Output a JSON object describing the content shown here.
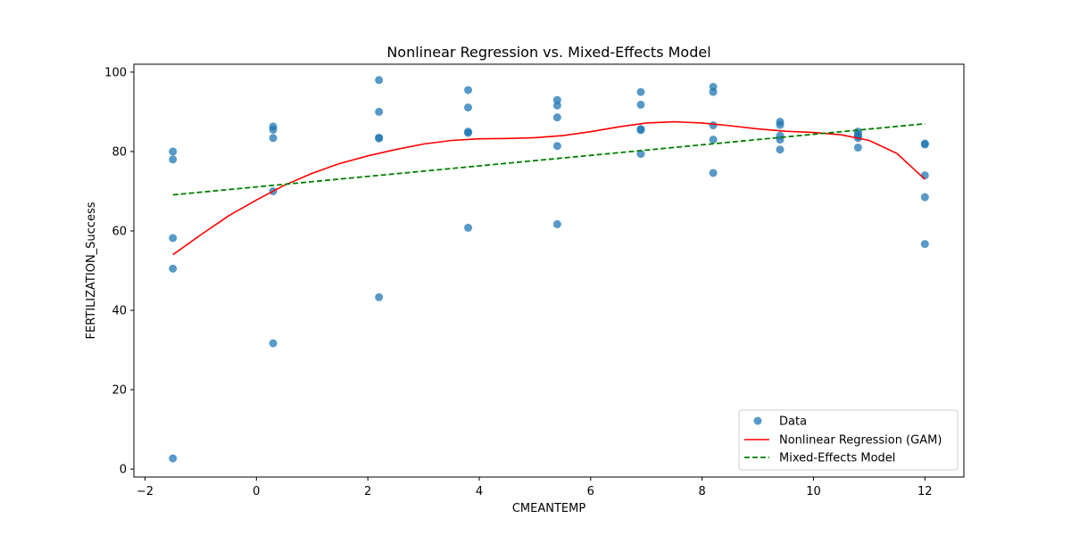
{
  "chart_data": {
    "type": "scatter",
    "title": "Nonlinear Regression vs. Mixed-Effects Model",
    "xlabel": "CMEANTEMP",
    "ylabel": "FERTILIZATION_Success",
    "xlim": [
      -2.2,
      12.7
    ],
    "ylim": [
      -2,
      102
    ],
    "xticks": [
      -2,
      0,
      2,
      4,
      6,
      8,
      10,
      12
    ],
    "yticks": [
      0,
      20,
      40,
      60,
      80,
      100
    ],
    "grid": false,
    "legend_position": "lower-right",
    "legend": [
      "Data",
      "Nonlinear Regression (GAM)",
      "Mixed-Effects Model"
    ],
    "colors": {
      "data": "#1f77b4",
      "gam": "#ff0000",
      "mixed": "#008000"
    },
    "series": [
      {
        "name": "Data",
        "kind": "scatter",
        "points": [
          [
            -1.5,
            80.0
          ],
          [
            -1.5,
            78.0
          ],
          [
            -1.5,
            58.2
          ],
          [
            -1.5,
            50.5
          ],
          [
            -1.5,
            2.7
          ],
          [
            0.3,
            86.3
          ],
          [
            0.3,
            85.5
          ],
          [
            0.3,
            83.4
          ],
          [
            0.3,
            70.0
          ],
          [
            0.3,
            31.7
          ],
          [
            2.2,
            98.0
          ],
          [
            2.2,
            90.0
          ],
          [
            2.2,
            83.5
          ],
          [
            2.2,
            83.3
          ],
          [
            2.2,
            43.3
          ],
          [
            3.8,
            95.5
          ],
          [
            3.8,
            91.1
          ],
          [
            3.8,
            85.0
          ],
          [
            3.8,
            84.7
          ],
          [
            3.8,
            60.8
          ],
          [
            5.4,
            93.0
          ],
          [
            5.4,
            91.6
          ],
          [
            5.4,
            88.6
          ],
          [
            5.4,
            81.4
          ],
          [
            5.4,
            61.7
          ],
          [
            6.9,
            95.0
          ],
          [
            6.9,
            91.8
          ],
          [
            6.9,
            85.7
          ],
          [
            6.9,
            85.4
          ],
          [
            6.9,
            79.4
          ],
          [
            8.2,
            96.3
          ],
          [
            8.2,
            95.0
          ],
          [
            8.2,
            86.6
          ],
          [
            8.2,
            83.0
          ],
          [
            8.2,
            74.6
          ],
          [
            9.4,
            87.5
          ],
          [
            9.4,
            86.7
          ],
          [
            9.4,
            84.0
          ],
          [
            9.4,
            83.0
          ],
          [
            9.4,
            80.5
          ],
          [
            10.8,
            85.0
          ],
          [
            10.8,
            84.3
          ],
          [
            10.8,
            83.9
          ],
          [
            10.8,
            83.4
          ],
          [
            10.8,
            81.0
          ],
          [
            12.0,
            82.0
          ],
          [
            12.0,
            81.8
          ],
          [
            12.0,
            74.0
          ],
          [
            12.0,
            68.5
          ],
          [
            12.0,
            56.7
          ]
        ]
      },
      {
        "name": "Nonlinear Regression (GAM)",
        "kind": "line",
        "points": [
          [
            -1.5,
            54.0
          ],
          [
            -1.0,
            59.0
          ],
          [
            -0.5,
            63.8
          ],
          [
            0.0,
            67.8
          ],
          [
            0.5,
            71.5
          ],
          [
            1.0,
            74.5
          ],
          [
            1.5,
            77.0
          ],
          [
            2.0,
            78.9
          ],
          [
            2.5,
            80.5
          ],
          [
            3.0,
            81.9
          ],
          [
            3.5,
            82.8
          ],
          [
            4.0,
            83.2
          ],
          [
            4.5,
            83.3
          ],
          [
            5.0,
            83.5
          ],
          [
            5.5,
            84.0
          ],
          [
            6.0,
            85.0
          ],
          [
            6.5,
            86.2
          ],
          [
            7.0,
            87.2
          ],
          [
            7.5,
            87.5
          ],
          [
            8.0,
            87.2
          ],
          [
            8.5,
            86.5
          ],
          [
            9.0,
            85.7
          ],
          [
            9.5,
            85.1
          ],
          [
            10.0,
            84.8
          ],
          [
            10.5,
            84.2
          ],
          [
            11.0,
            82.8
          ],
          [
            11.5,
            79.5
          ],
          [
            12.0,
            73.0
          ]
        ]
      },
      {
        "name": "Mixed-Effects Model",
        "kind": "line",
        "dashed": true,
        "points": [
          [
            -1.5,
            69.1
          ],
          [
            12.0,
            87.0
          ]
        ]
      }
    ]
  }
}
